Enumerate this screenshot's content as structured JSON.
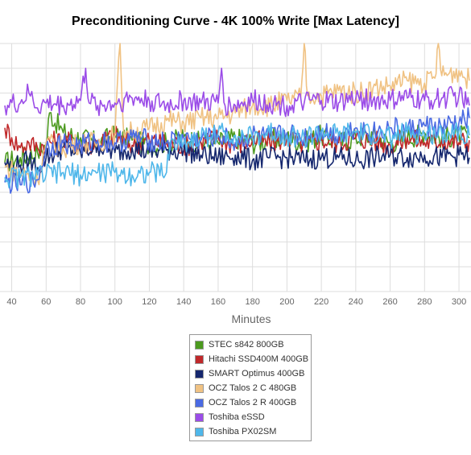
{
  "chart_data": {
    "type": "line",
    "title": "Preconditioning Curve - 4K 100% Write [Max Latency]",
    "xlabel": "Minutes",
    "ylabel": "",
    "xlim": [
      36,
      307
    ],
    "ylim": [
      0,
      10
    ],
    "x_ticks": [
      40,
      60,
      80,
      100,
      120,
      140,
      160,
      180,
      200,
      220,
      240,
      260,
      280,
      300
    ],
    "grid": true,
    "legend_position": "bottom-center",
    "series": [
      {
        "name": "STEC s842 800GB",
        "color": "#4c9a1f",
        "x": [
          36,
          45,
          55,
          60,
          62,
          70,
          80,
          90,
          100,
          110,
          120,
          130,
          140,
          150,
          160,
          170,
          180,
          190,
          200,
          210,
          220,
          230,
          240,
          250,
          260,
          270,
          280,
          290,
          300,
          306
        ],
        "y": [
          5.2,
          5.4,
          5.6,
          5.9,
          7.2,
          6.4,
          6.2,
          6.0,
          6.3,
          6.1,
          5.9,
          6.0,
          6.2,
          6.0,
          6.0,
          6.2,
          6.0,
          6.1,
          6.2,
          6.0,
          6.3,
          6.0,
          6.2,
          6.3,
          6.0,
          6.2,
          6.4,
          6.2,
          6.3,
          6.2
        ]
      },
      {
        "name": "Hitachi SSD400M 400GB",
        "color": "#c0282a",
        "x": [
          36,
          40,
          45,
          50,
          55,
          60,
          70,
          80,
          90,
          100,
          110,
          120,
          130,
          140,
          150,
          160,
          170,
          180,
          190,
          200,
          210,
          220,
          230,
          240,
          250,
          260,
          270,
          280,
          290,
          300,
          306
        ],
        "y": [
          6.6,
          6.2,
          5.8,
          6.0,
          5.8,
          6.0,
          6.1,
          5.9,
          6.0,
          6.3,
          5.9,
          6.1,
          6.0,
          5.9,
          6.0,
          6.2,
          5.9,
          6.1,
          6.0,
          6.2,
          5.9,
          6.1,
          6.0,
          6.2,
          6.1,
          5.9,
          6.2,
          6.0,
          6.1,
          6.0,
          6.1
        ]
      },
      {
        "name": "SMART Optimus 400GB",
        "color": "#15276e",
        "x": [
          36,
          40,
          45,
          50,
          55,
          60,
          70,
          80,
          90,
          100,
          110,
          120,
          130,
          140,
          150,
          160,
          170,
          180,
          190,
          200,
          210,
          220,
          230,
          240,
          250,
          260,
          270,
          280,
          290,
          300,
          306
        ],
        "y": [
          5.2,
          5.0,
          5.1,
          5.3,
          5.0,
          5.4,
          5.8,
          5.6,
          5.9,
          5.6,
          5.8,
          5.6,
          5.7,
          5.7,
          5.5,
          5.4,
          5.5,
          5.3,
          5.4,
          5.4,
          5.3,
          5.4,
          5.4,
          5.3,
          5.4,
          5.5,
          5.4,
          5.5,
          5.4,
          5.5,
          5.4
        ]
      },
      {
        "name": "OCZ Talos 2 C 480GB",
        "color": "#f0c283",
        "x": [
          36,
          45,
          55,
          60,
          70,
          80,
          90,
          100,
          103,
          105,
          110,
          120,
          130,
          140,
          150,
          160,
          170,
          180,
          190,
          200,
          208,
          210,
          212,
          220,
          230,
          240,
          250,
          260,
          270,
          280,
          286,
          288,
          290,
          300,
          306
        ],
        "y": [
          5.0,
          4.8,
          4.5,
          6.0,
          5.8,
          6.0,
          6.0,
          6.3,
          10.0,
          6.5,
          6.4,
          6.6,
          6.9,
          6.8,
          7.0,
          7.0,
          7.2,
          7.5,
          7.5,
          7.7,
          7.8,
          10.0,
          7.9,
          7.9,
          8.1,
          8.0,
          8.2,
          8.3,
          8.5,
          8.4,
          8.6,
          10.0,
          8.7,
          8.9,
          8.5
        ]
      },
      {
        "name": "OCZ Talos 2 R 400GB",
        "color": "#4a6ae3",
        "x": [
          36,
          45,
          55,
          60,
          70,
          80,
          90,
          100,
          110,
          120,
          130,
          140,
          150,
          160,
          170,
          180,
          190,
          200,
          210,
          220,
          230,
          240,
          250,
          260,
          270,
          280,
          290,
          300,
          306
        ],
        "y": [
          4.4,
          4.3,
          4.5,
          5.8,
          6.0,
          5.9,
          6.1,
          6.0,
          6.2,
          6.1,
          6.0,
          6.2,
          6.1,
          6.3,
          6.0,
          6.3,
          6.2,
          6.4,
          6.2,
          6.5,
          6.3,
          6.6,
          6.4,
          6.6,
          6.5,
          6.7,
          6.6,
          6.8,
          7.0
        ]
      },
      {
        "name": "Toshiba eSSD",
        "color": "#9b4ce8",
        "x": [
          36,
          45,
          50,
          55,
          60,
          70,
          80,
          83,
          85,
          90,
          100,
          110,
          120,
          130,
          140,
          150,
          160,
          162,
          164,
          170,
          180,
          190,
          200,
          210,
          220,
          230,
          240,
          250,
          260,
          270,
          280,
          290,
          300,
          306
        ],
        "y": [
          7.5,
          7.6,
          8.0,
          7.4,
          7.6,
          7.5,
          7.7,
          9.0,
          7.6,
          7.5,
          7.6,
          7.8,
          7.7,
          7.5,
          7.7,
          7.6,
          7.6,
          9.0,
          7.5,
          7.5,
          7.7,
          7.6,
          7.5,
          7.6,
          7.7,
          7.6,
          7.8,
          7.7,
          7.7,
          7.8,
          7.7,
          7.8,
          7.9,
          7.5
        ]
      },
      {
        "name": "Toshiba PX02SM",
        "color": "#4fb7ea",
        "x": [
          36,
          45,
          55,
          60,
          70,
          80,
          90,
          100,
          110,
          120,
          130,
          132,
          140,
          150,
          160,
          170,
          180,
          190,
          200,
          210,
          220,
          230,
          240,
          250,
          260,
          270,
          280,
          290,
          300,
          306
        ],
        "y": [
          4.6,
          4.6,
          4.7,
          4.7,
          4.8,
          4.7,
          4.8,
          4.8,
          4.7,
          4.8,
          4.8,
          6.0,
          6.0,
          6.2,
          6.4,
          6.3,
          6.2,
          6.4,
          6.3,
          6.2,
          6.4,
          6.3,
          6.4,
          6.3,
          6.2,
          6.4,
          6.3,
          6.4,
          6.5,
          6.3
        ]
      }
    ]
  }
}
